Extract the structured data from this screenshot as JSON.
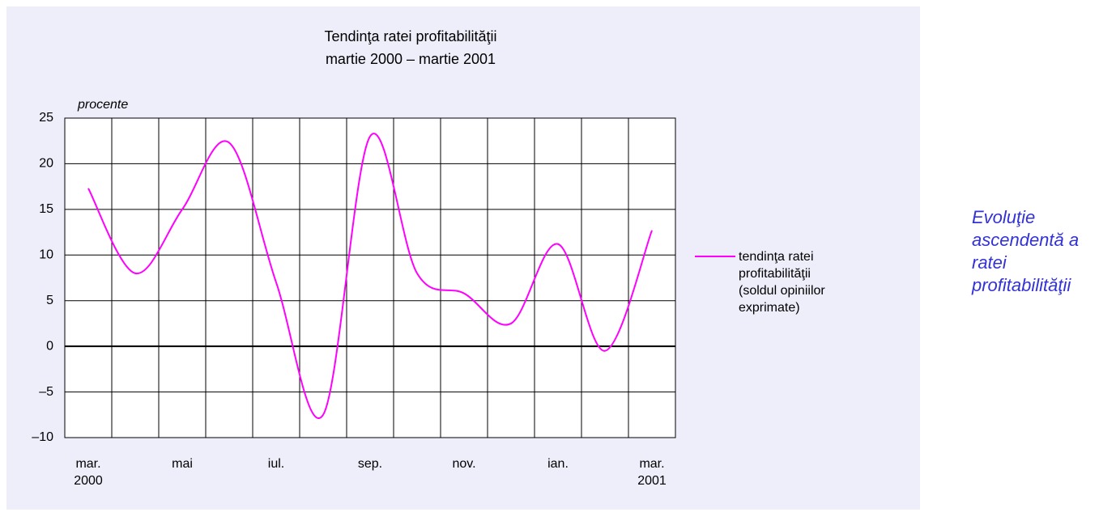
{
  "chart_data": {
    "type": "line",
    "title": "Tendinţa ratei profitabilităţii",
    "subtitle": "martie 2000 – martie 2001",
    "y_axis_label": "procente",
    "categories": [
      "mar.\n2000",
      null,
      "mai",
      null,
      "iul.",
      null,
      "sep.",
      null,
      "nov.",
      null,
      "ian.",
      null,
      "mar.\n2001"
    ],
    "series": [
      {
        "name": "tendinţa ratei profitabilităţii (soldul opiniilor exprimate)",
        "color": "#ff00ff",
        "values": [
          17.3,
          8,
          15,
          22.3,
          7,
          -7.5,
          23,
          8,
          5.8,
          2.5,
          11.2,
          -0.5,
          12.7
        ]
      }
    ],
    "ylim": [
      -10,
      25
    ],
    "yticks": [
      {
        "value": -10,
        "label": "–10"
      },
      {
        "value": -5,
        "label": "–5"
      },
      0,
      5,
      10,
      15,
      20,
      25
    ],
    "grid": true,
    "legend": "right",
    "annotation": "Evoluţie ascendentă a ratei profitabilităţii"
  }
}
